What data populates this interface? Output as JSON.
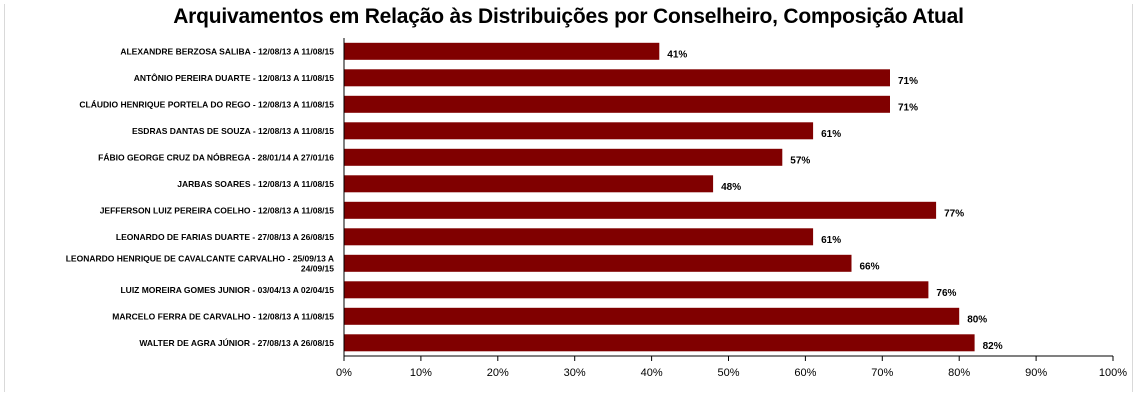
{
  "chart_data": {
    "type": "bar",
    "orientation": "horizontal",
    "title": "Arquivamentos em Relação às Distribuições por Conselheiro, Composição Atual",
    "categories": [
      "ALEXANDRE BERZOSA SALIBA - 12/08/13 A 11/08/15",
      "ANTÔNIO PEREIRA DUARTE - 12/08/13 A 11/08/15",
      "CLÁUDIO HENRIQUE PORTELA DO REGO - 12/08/13 A 11/08/15",
      "ESDRAS DANTAS DE SOUZA - 12/08/13 A 11/08/15",
      "FÁBIO GEORGE CRUZ DA NÓBREGA - 28/01/14 A 27/01/16",
      "JARBAS SOARES - 12/08/13 A 11/08/15",
      "JEFFERSON LUIZ PEREIRA COELHO - 12/08/13 A 11/08/15",
      "LEONARDO DE FARIAS DUARTE - 27/08/13 A 26/08/15",
      "LEONARDO HENRIQUE DE CAVALCANTE CARVALHO - 25/09/13 A 24/09/15",
      "LUIZ MOREIRA GOMES JUNIOR - 03/04/13 A 02/04/15",
      "MARCELO FERRA DE CARVALHO - 12/08/13 A 11/08/15",
      "WALTER DE AGRA JÚNIOR - 27/08/13 A 26/08/15"
    ],
    "values": [
      0.41,
      0.71,
      0.71,
      0.61,
      0.57,
      0.48,
      0.77,
      0.61,
      0.66,
      0.76,
      0.8,
      0.82
    ],
    "value_labels": [
      "41%",
      "71%",
      "71%",
      "61%",
      "57%",
      "48%",
      "77%",
      "61%",
      "66%",
      "76%",
      "80%",
      "82%"
    ],
    "x_ticks": [
      "0%",
      "10%",
      "20%",
      "30%",
      "40%",
      "50%",
      "60%",
      "70%",
      "80%",
      "90%",
      "100%"
    ],
    "xlim": [
      0,
      1
    ],
    "bar_color": "#800000",
    "grid": false,
    "legend": "none"
  }
}
